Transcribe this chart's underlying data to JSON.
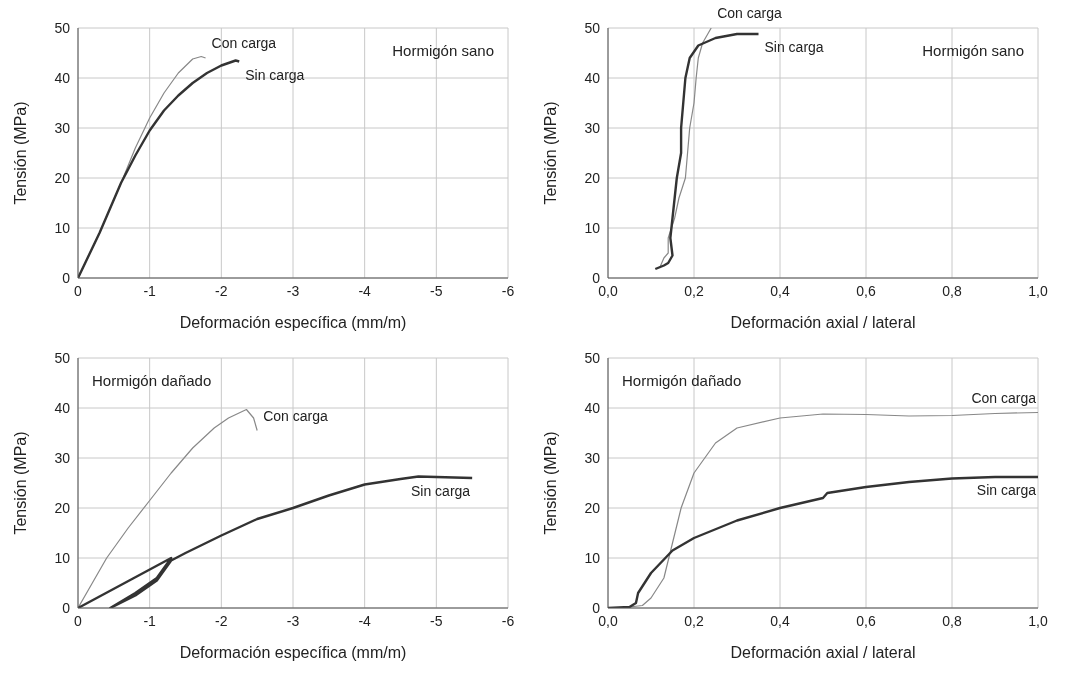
{
  "chart_data": [
    {
      "type": "line",
      "xlabel": "Deformación específica (mm/m)",
      "ylabel": "Tensión (MPa)",
      "xlim": [
        0,
        -6
      ],
      "xticks": [
        0,
        -1,
        -2,
        -3,
        -4,
        -5,
        -6
      ],
      "ylim": [
        0,
        50
      ],
      "yticks": [
        0,
        10,
        20,
        30,
        40,
        50
      ],
      "grid": true,
      "annotations": [
        "Hormigón sano"
      ],
      "series": [
        {
          "name": "Con carga",
          "color": "#888888",
          "x": [
            0,
            -0.3,
            -0.6,
            -0.8,
            -1.0,
            -1.2,
            -1.4,
            -1.6,
            -1.72,
            -1.78
          ],
          "values": [
            0,
            9,
            19,
            26,
            32,
            37,
            41,
            43.8,
            44.3,
            44
          ]
        },
        {
          "name": "Sin carga",
          "color": "#333333",
          "x": [
            0,
            -0.3,
            -0.6,
            -0.8,
            -1.0,
            -1.2,
            -1.4,
            -1.6,
            -1.8,
            -2.0,
            -2.2,
            -2.25
          ],
          "values": [
            0,
            9,
            19,
            24.5,
            29.5,
            33.5,
            36.5,
            39,
            41,
            42.5,
            43.5,
            43.3
          ]
        }
      ]
    },
    {
      "type": "line",
      "xlabel": "Deformación axial / lateral",
      "ylabel": "Tensión (MPa)",
      "xlim": [
        0,
        1
      ],
      "xticks": [
        {
          "value": 0,
          "label": "0,0"
        },
        {
          "value": 0.2,
          "label": "0,2"
        },
        {
          "value": 0.4,
          "label": "0,4"
        },
        {
          "value": 0.6,
          "label": "0,6"
        },
        {
          "value": 0.8,
          "label": "0,8"
        },
        {
          "value": 1,
          "label": "1,0"
        }
      ],
      "ylim": [
        0,
        50
      ],
      "yticks": [
        0,
        10,
        20,
        30,
        40,
        50
      ],
      "grid": true,
      "annotations": [
        "Hormigón sano"
      ],
      "series": [
        {
          "name": "Con carga",
          "color": "#888888",
          "x": [
            0.12,
            0.13,
            0.14,
            0.14,
            0.155,
            0.165,
            0.18,
            0.185,
            0.19,
            0.2,
            0.205,
            0.21,
            0.22,
            0.24
          ],
          "values": [
            2,
            4,
            5,
            8,
            12,
            16,
            20,
            25,
            30,
            35,
            40,
            44,
            47,
            50
          ]
        },
        {
          "name": "Sin carga",
          "color": "#333333",
          "x": [
            0.11,
            0.13,
            0.14,
            0.15,
            0.145,
            0.15,
            0.155,
            0.16,
            0.17,
            0.17,
            0.175,
            0.18,
            0.19,
            0.21,
            0.25,
            0.3,
            0.35
          ],
          "values": [
            1.8,
            2.5,
            3,
            4.5,
            8,
            12,
            16,
            20,
            25,
            30,
            35,
            40,
            44,
            46.5,
            48,
            48.8,
            48.8
          ]
        }
      ]
    },
    {
      "type": "line",
      "xlabel": "Deformación específica (mm/m)",
      "ylabel": "Tensión (MPa)",
      "xlim": [
        0,
        -6
      ],
      "xticks": [
        0,
        -1,
        -2,
        -3,
        -4,
        -5,
        -6
      ],
      "ylim": [
        0,
        50
      ],
      "yticks": [
        0,
        10,
        20,
        30,
        40,
        50
      ],
      "grid": true,
      "annotations": [
        "Hormigón dañado"
      ],
      "series": [
        {
          "name": "Con carga",
          "color": "#888888",
          "x": [
            0,
            -0.2,
            -0.4,
            -0.7,
            -1.0,
            -1.3,
            -1.6,
            -1.9,
            -2.1,
            -2.35,
            -2.45,
            -2.5
          ],
          "values": [
            0,
            5,
            10,
            16,
            21.5,
            27,
            32,
            36,
            38,
            39.7,
            38,
            35.5
          ]
        },
        {
          "name": "Sin carga",
          "color": "#333333",
          "x": [
            0,
            -1.3,
            -1.1,
            -0.8,
            -0.45,
            -0.8,
            -1.1,
            -1.3,
            -1.5,
            -2,
            -2.5,
            -3,
            -3.5,
            -4,
            -4.5,
            -4.75,
            -5,
            -5.5
          ],
          "values": [
            0,
            10,
            6,
            3,
            0,
            2.5,
            5.5,
            9.5,
            11,
            14.5,
            17.8,
            20,
            22.5,
            24.7,
            25.8,
            26.3,
            26.2,
            26
          ]
        }
      ]
    },
    {
      "type": "line",
      "xlabel": "Deformación axial / lateral",
      "ylabel": "Tensión (MPa)",
      "xlim": [
        0,
        1
      ],
      "xticks": [
        {
          "value": 0,
          "label": "0,0"
        },
        {
          "value": 0.2,
          "label": "0,2"
        },
        {
          "value": 0.4,
          "label": "0,4"
        },
        {
          "value": 0.6,
          "label": "0,6"
        },
        {
          "value": 0.8,
          "label": "0,8"
        },
        {
          "value": 1,
          "label": "1,0"
        }
      ],
      "ylim": [
        0,
        50
      ],
      "yticks": [
        0,
        10,
        20,
        30,
        40,
        50
      ],
      "grid": true,
      "annotations": [
        "Hormigón dañado"
      ],
      "series": [
        {
          "name": "Con carga",
          "color": "#888888",
          "x": [
            0,
            0.05,
            0.08,
            0.1,
            0.13,
            0.15,
            0.17,
            0.2,
            0.25,
            0.3,
            0.4,
            0.5,
            0.6,
            0.7,
            0.8,
            0.9,
            1.0
          ],
          "values": [
            0,
            0.2,
            0.5,
            2,
            6,
            13,
            20,
            27,
            33,
            36,
            38,
            38.8,
            38.7,
            38.4,
            38.5,
            38.9,
            39.1
          ]
        },
        {
          "name": "Sin carga",
          "color": "#333333",
          "x": [
            0,
            0.05,
            0.065,
            0.07,
            0.1,
            0.15,
            0.2,
            0.3,
            0.4,
            0.5,
            0.51,
            0.6,
            0.7,
            0.8,
            0.9,
            1.0
          ],
          "values": [
            0,
            0.2,
            1,
            3,
            7,
            11.5,
            14,
            17.5,
            20,
            22,
            23,
            24.2,
            25.2,
            25.9,
            26.2,
            26.2
          ]
        }
      ]
    }
  ]
}
